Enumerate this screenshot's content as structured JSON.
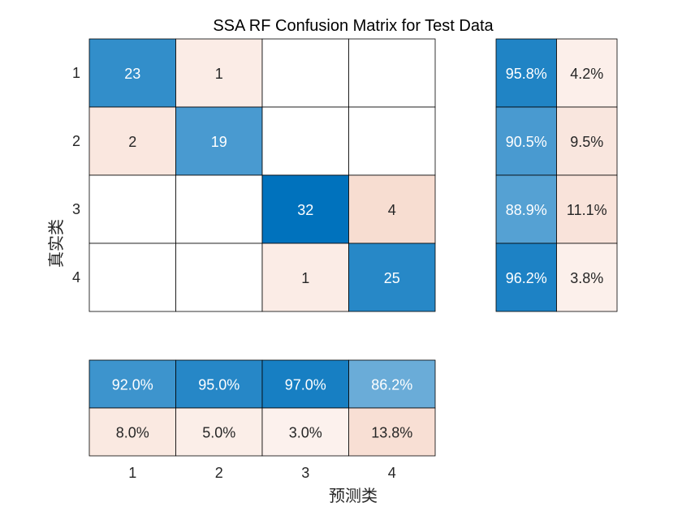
{
  "chart_data": {
    "type": "heatmap",
    "title": "SSA RF Confusion Matrix for Test Data",
    "xlabel": "预测类",
    "ylabel": "真实类",
    "classes": [
      "1",
      "2",
      "3",
      "4"
    ],
    "matrix": [
      [
        23,
        1,
        0,
        0
      ],
      [
        2,
        19,
        0,
        0
      ],
      [
        0,
        0,
        32,
        4
      ],
      [
        0,
        0,
        1,
        25
      ]
    ],
    "row_summary": [
      [
        "95.8%",
        "4.2%"
      ],
      [
        "90.5%",
        "9.5%"
      ],
      [
        "88.9%",
        "11.1%"
      ],
      [
        "96.2%",
        "3.8%"
      ]
    ],
    "column_summary": [
      [
        "92.0%",
        "95.0%",
        "97.0%",
        "86.2%"
      ],
      [
        "8.0%",
        "5.0%",
        "3.0%",
        "13.8%"
      ]
    ],
    "colors": {
      "correct_max": "#0072bd",
      "error_max": "#d95319",
      "background": "#ffffff",
      "grid": "#000000"
    }
  }
}
